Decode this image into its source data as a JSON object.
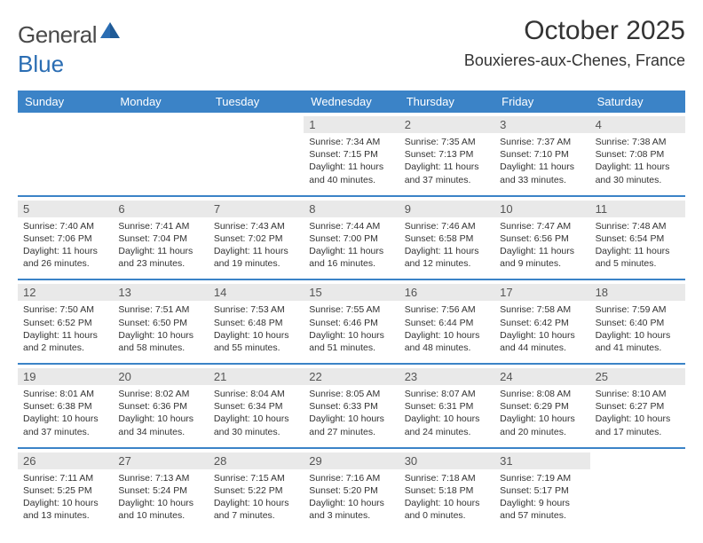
{
  "logo": {
    "word1": "General",
    "word2": "Blue"
  },
  "title": "October 2025",
  "location": "Bouxieres-aux-Chenes, France",
  "colors": {
    "header_bg": "#3b83c7",
    "daynum_bg": "#e9e9e9",
    "text": "#333333",
    "logo_gray": "#4a4a4a",
    "logo_blue": "#2a6db3"
  },
  "day_names": [
    "Sunday",
    "Monday",
    "Tuesday",
    "Wednesday",
    "Thursday",
    "Friday",
    "Saturday"
  ],
  "weeks": [
    [
      {
        "n": "",
        "sunrise": "",
        "sunset": "",
        "daylight": ""
      },
      {
        "n": "",
        "sunrise": "",
        "sunset": "",
        "daylight": ""
      },
      {
        "n": "",
        "sunrise": "",
        "sunset": "",
        "daylight": ""
      },
      {
        "n": "1",
        "sunrise": "Sunrise: 7:34 AM",
        "sunset": "Sunset: 7:15 PM",
        "daylight": "Daylight: 11 hours and 40 minutes."
      },
      {
        "n": "2",
        "sunrise": "Sunrise: 7:35 AM",
        "sunset": "Sunset: 7:13 PM",
        "daylight": "Daylight: 11 hours and 37 minutes."
      },
      {
        "n": "3",
        "sunrise": "Sunrise: 7:37 AM",
        "sunset": "Sunset: 7:10 PM",
        "daylight": "Daylight: 11 hours and 33 minutes."
      },
      {
        "n": "4",
        "sunrise": "Sunrise: 7:38 AM",
        "sunset": "Sunset: 7:08 PM",
        "daylight": "Daylight: 11 hours and 30 minutes."
      }
    ],
    [
      {
        "n": "5",
        "sunrise": "Sunrise: 7:40 AM",
        "sunset": "Sunset: 7:06 PM",
        "daylight": "Daylight: 11 hours and 26 minutes."
      },
      {
        "n": "6",
        "sunrise": "Sunrise: 7:41 AM",
        "sunset": "Sunset: 7:04 PM",
        "daylight": "Daylight: 11 hours and 23 minutes."
      },
      {
        "n": "7",
        "sunrise": "Sunrise: 7:43 AM",
        "sunset": "Sunset: 7:02 PM",
        "daylight": "Daylight: 11 hours and 19 minutes."
      },
      {
        "n": "8",
        "sunrise": "Sunrise: 7:44 AM",
        "sunset": "Sunset: 7:00 PM",
        "daylight": "Daylight: 11 hours and 16 minutes."
      },
      {
        "n": "9",
        "sunrise": "Sunrise: 7:46 AM",
        "sunset": "Sunset: 6:58 PM",
        "daylight": "Daylight: 11 hours and 12 minutes."
      },
      {
        "n": "10",
        "sunrise": "Sunrise: 7:47 AM",
        "sunset": "Sunset: 6:56 PM",
        "daylight": "Daylight: 11 hours and 9 minutes."
      },
      {
        "n": "11",
        "sunrise": "Sunrise: 7:48 AM",
        "sunset": "Sunset: 6:54 PM",
        "daylight": "Daylight: 11 hours and 5 minutes."
      }
    ],
    [
      {
        "n": "12",
        "sunrise": "Sunrise: 7:50 AM",
        "sunset": "Sunset: 6:52 PM",
        "daylight": "Daylight: 11 hours and 2 minutes."
      },
      {
        "n": "13",
        "sunrise": "Sunrise: 7:51 AM",
        "sunset": "Sunset: 6:50 PM",
        "daylight": "Daylight: 10 hours and 58 minutes."
      },
      {
        "n": "14",
        "sunrise": "Sunrise: 7:53 AM",
        "sunset": "Sunset: 6:48 PM",
        "daylight": "Daylight: 10 hours and 55 minutes."
      },
      {
        "n": "15",
        "sunrise": "Sunrise: 7:55 AM",
        "sunset": "Sunset: 6:46 PM",
        "daylight": "Daylight: 10 hours and 51 minutes."
      },
      {
        "n": "16",
        "sunrise": "Sunrise: 7:56 AM",
        "sunset": "Sunset: 6:44 PM",
        "daylight": "Daylight: 10 hours and 48 minutes."
      },
      {
        "n": "17",
        "sunrise": "Sunrise: 7:58 AM",
        "sunset": "Sunset: 6:42 PM",
        "daylight": "Daylight: 10 hours and 44 minutes."
      },
      {
        "n": "18",
        "sunrise": "Sunrise: 7:59 AM",
        "sunset": "Sunset: 6:40 PM",
        "daylight": "Daylight: 10 hours and 41 minutes."
      }
    ],
    [
      {
        "n": "19",
        "sunrise": "Sunrise: 8:01 AM",
        "sunset": "Sunset: 6:38 PM",
        "daylight": "Daylight: 10 hours and 37 minutes."
      },
      {
        "n": "20",
        "sunrise": "Sunrise: 8:02 AM",
        "sunset": "Sunset: 6:36 PM",
        "daylight": "Daylight: 10 hours and 34 minutes."
      },
      {
        "n": "21",
        "sunrise": "Sunrise: 8:04 AM",
        "sunset": "Sunset: 6:34 PM",
        "daylight": "Daylight: 10 hours and 30 minutes."
      },
      {
        "n": "22",
        "sunrise": "Sunrise: 8:05 AM",
        "sunset": "Sunset: 6:33 PM",
        "daylight": "Daylight: 10 hours and 27 minutes."
      },
      {
        "n": "23",
        "sunrise": "Sunrise: 8:07 AM",
        "sunset": "Sunset: 6:31 PM",
        "daylight": "Daylight: 10 hours and 24 minutes."
      },
      {
        "n": "24",
        "sunrise": "Sunrise: 8:08 AM",
        "sunset": "Sunset: 6:29 PM",
        "daylight": "Daylight: 10 hours and 20 minutes."
      },
      {
        "n": "25",
        "sunrise": "Sunrise: 8:10 AM",
        "sunset": "Sunset: 6:27 PM",
        "daylight": "Daylight: 10 hours and 17 minutes."
      }
    ],
    [
      {
        "n": "26",
        "sunrise": "Sunrise: 7:11 AM",
        "sunset": "Sunset: 5:25 PM",
        "daylight": "Daylight: 10 hours and 13 minutes."
      },
      {
        "n": "27",
        "sunrise": "Sunrise: 7:13 AM",
        "sunset": "Sunset: 5:24 PM",
        "daylight": "Daylight: 10 hours and 10 minutes."
      },
      {
        "n": "28",
        "sunrise": "Sunrise: 7:15 AM",
        "sunset": "Sunset: 5:22 PM",
        "daylight": "Daylight: 10 hours and 7 minutes."
      },
      {
        "n": "29",
        "sunrise": "Sunrise: 7:16 AM",
        "sunset": "Sunset: 5:20 PM",
        "daylight": "Daylight: 10 hours and 3 minutes."
      },
      {
        "n": "30",
        "sunrise": "Sunrise: 7:18 AM",
        "sunset": "Sunset: 5:18 PM",
        "daylight": "Daylight: 10 hours and 0 minutes."
      },
      {
        "n": "31",
        "sunrise": "Sunrise: 7:19 AM",
        "sunset": "Sunset: 5:17 PM",
        "daylight": "Daylight: 9 hours and 57 minutes."
      },
      {
        "n": "",
        "sunrise": "",
        "sunset": "",
        "daylight": ""
      }
    ]
  ]
}
